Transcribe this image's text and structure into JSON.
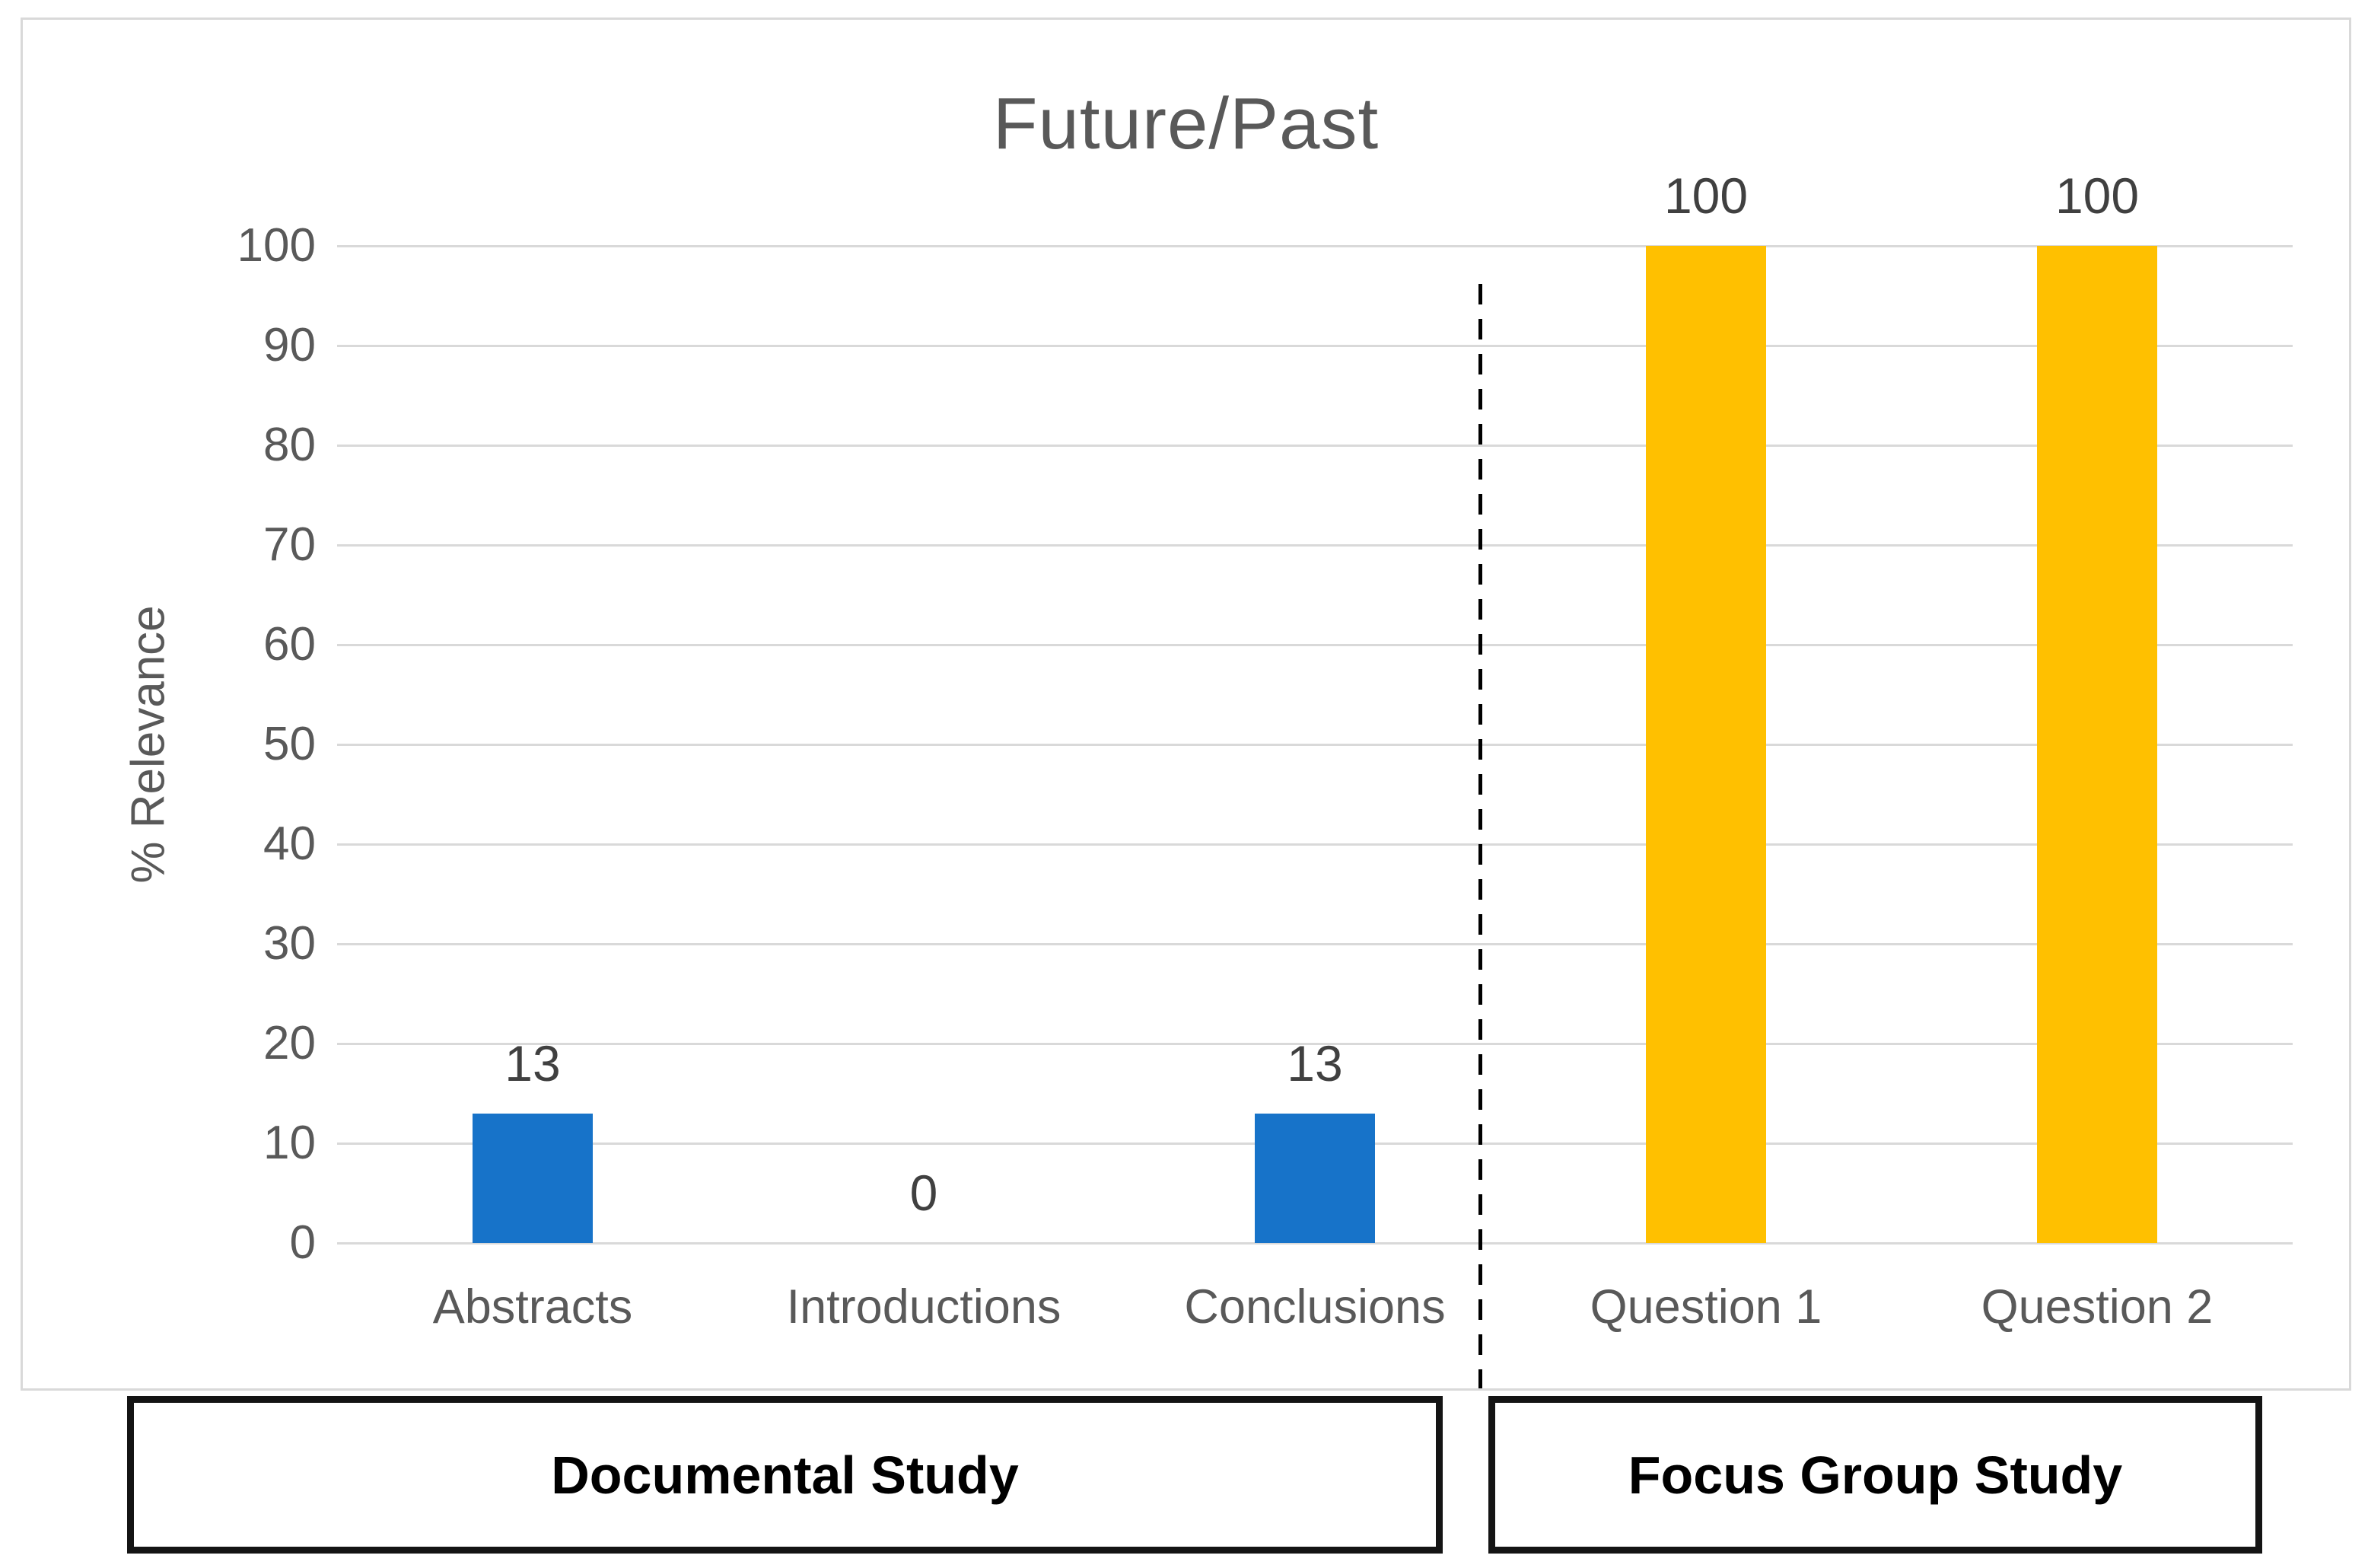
{
  "chart_data": {
    "type": "bar",
    "title": "Future/Past",
    "ylabel": "% Relevance",
    "ylim": [
      0,
      100
    ],
    "ytick_step": 10,
    "grid": true,
    "legend": false,
    "categories": [
      "Abstracts",
      "Introductions",
      "Conclusions",
      "Question 1",
      "Question 2"
    ],
    "values": [
      13,
      0,
      13,
      100,
      100
    ],
    "data_labels": [
      "13",
      "0",
      "13",
      "100",
      "100"
    ],
    "bar_colors": [
      "#1773C9",
      "#1773C9",
      "#1773C9",
      "#FFC000",
      "#FFC000"
    ],
    "groups": [
      {
        "label": "Documental Study",
        "categories": [
          "Abstracts",
          "Introductions",
          "Conclusions"
        ],
        "bar_color": "#1773C9"
      },
      {
        "label": "Focus Group Study",
        "categories": [
          "Question 1",
          "Question 2"
        ],
        "bar_color": "#FFC000"
      }
    ],
    "separator": "dashed vertical line between Conclusions and Question 1"
  },
  "colors": {
    "gridline": "#D9D9D9",
    "frame_border": "#D9D9D9",
    "axis_text": "#595959",
    "title_text": "#595959",
    "data_label_text": "#404040",
    "separator_line": "#000000",
    "group_box_border": "#141414",
    "group_box_text": "#000000",
    "background": "#FFFFFF"
  }
}
